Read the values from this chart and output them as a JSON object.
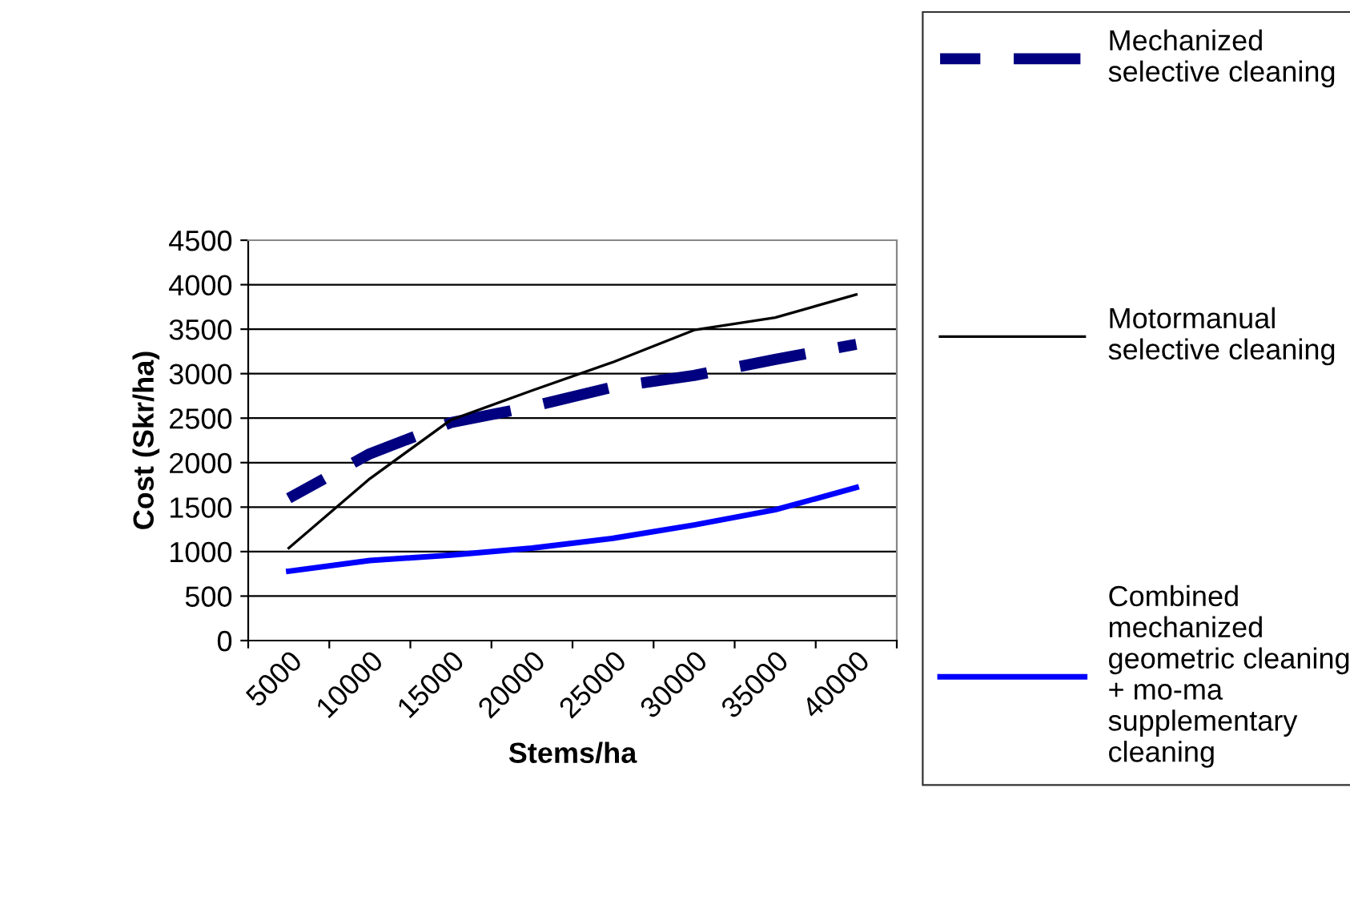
{
  "chart_data": {
    "type": "line",
    "xlabel": "Stems/ha",
    "ylabel": "Cost (Skr/ha)",
    "categories": [
      "5000",
      "10000",
      "15000",
      "20000",
      "25000",
      "30000",
      "35000",
      "40000"
    ],
    "series": [
      {
        "name": "Mechanized\nselective cleaning",
        "color": "#000080",
        "line_style": "dashed",
        "values": [
          1600,
          2100,
          2450,
          2630,
          2850,
          2980,
          3160,
          3330
        ]
      },
      {
        "name": "Motormanual\nselective cleaning",
        "color": "#000000",
        "line_style": "solid",
        "values": [
          1040,
          1820,
          2480,
          2810,
          3130,
          3490,
          3630,
          3890
        ]
      },
      {
        "name": "Combined\nmechanized\ngeometric cleaning\n+ mo-ma\nsupplementary\ncleaning",
        "color": "#0000ff",
        "line_style": "solid",
        "values": [
          780,
          900,
          960,
          1040,
          1150,
          1300,
          1470,
          1720
        ]
      }
    ],
    "ylim": [
      0,
      4500
    ],
    "yticks": [
      0,
      500,
      1000,
      1500,
      2000,
      2500,
      3000,
      3500,
      4000,
      4500
    ],
    "grid": "y",
    "legend": "right",
    "marker": "none"
  }
}
